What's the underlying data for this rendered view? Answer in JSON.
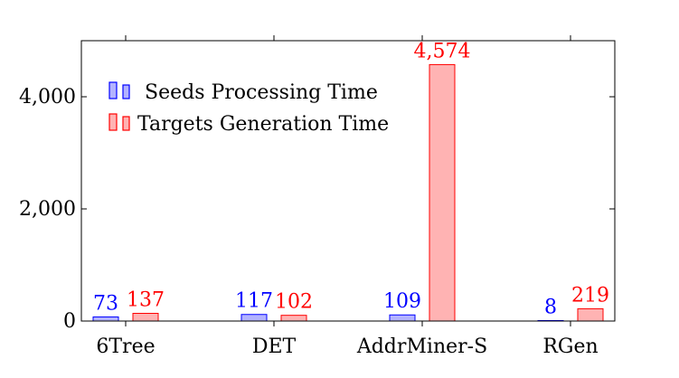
{
  "chart_data": {
    "type": "bar",
    "categories": [
      "6Tree",
      "DET",
      "AddrMiner-S",
      "RGen"
    ],
    "series": [
      {
        "name": "Seeds Processing Time",
        "values": [
          73,
          117,
          109,
          8
        ],
        "value_labels": [
          "73",
          "117",
          "109",
          "8"
        ],
        "fill": "#b3b3ff",
        "stroke": "#0000ff",
        "label_color": "#0000ff"
      },
      {
        "name": "Targets Generation Time",
        "values": [
          137,
          102,
          4574,
          219
        ],
        "value_labels": [
          "137",
          "102",
          "4,574",
          "219"
        ],
        "fill": "#ffb3b3",
        "stroke": "#ff0000",
        "label_color": "#ff0000"
      }
    ],
    "ylim": [
      0,
      5000
    ],
    "yticks": [
      0,
      2000,
      4000
    ],
    "ytick_labels": [
      "0",
      "2,000",
      "4,000"
    ],
    "legend_position": "top-left",
    "grid": false
  }
}
